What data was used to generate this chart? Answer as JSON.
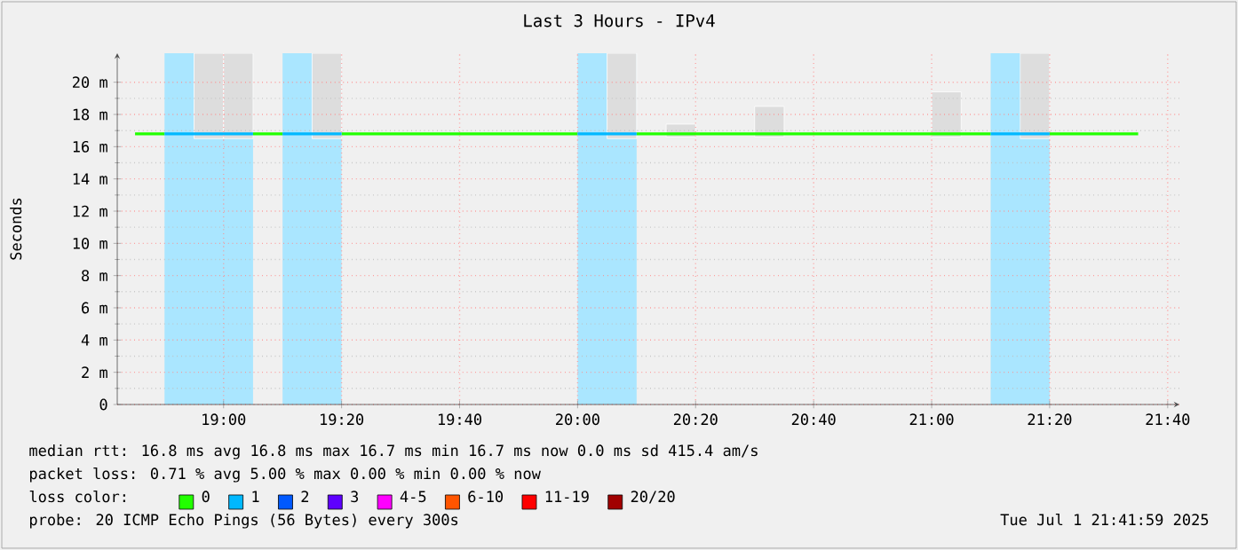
{
  "chart_data": {
    "type": "line",
    "title": "Last 3 Hours - IPv4",
    "ylabel": "Seconds",
    "xlim": [
      18.6997,
      21.6997
    ],
    "xticks": [
      {
        "value": 19,
        "label": "19:00"
      },
      {
        "value": 19.3333,
        "label": "19:20"
      },
      {
        "value": 19.6667,
        "label": "19:40"
      },
      {
        "value": 20,
        "label": "20:00"
      },
      {
        "value": 20.3333,
        "label": "20:20"
      },
      {
        "value": 20.6667,
        "label": "20:40"
      },
      {
        "value": 21,
        "label": "21:00"
      },
      {
        "value": 21.3333,
        "label": "21:20"
      },
      {
        "value": 21.6667,
        "label": "21:40"
      }
    ],
    "ylim": [
      0,
      21.8
    ],
    "yticks": [
      0,
      {
        "value": 2,
        "label": "2 m"
      },
      {
        "value": 4,
        "label": "4 m"
      },
      {
        "value": 6,
        "label": "6 m"
      },
      {
        "value": 8,
        "label": "8 m"
      },
      {
        "value": 10,
        "label": "10 m"
      },
      {
        "value": 12,
        "label": "12 m"
      },
      {
        "value": 14,
        "label": "14 m"
      },
      {
        "value": 16,
        "label": "16 m"
      },
      {
        "value": 18,
        "label": "18 m"
      },
      {
        "value": 20,
        "label": "20 m"
      }
    ],
    "grid": true,
    "legend": "bottom",
    "legend_title": "loss color:",
    "bands": [
      {
        "axis": "x",
        "from": 18.8333,
        "to": 19.0833,
        "color": "#aae6ff"
      },
      {
        "axis": "x",
        "from": 19.1667,
        "to": 19.3333,
        "color": "#aae6ff"
      },
      {
        "axis": "x",
        "from": 20,
        "to": 20.1667,
        "color": "#aae6ff"
      },
      {
        "axis": "x",
        "from": 21.1667,
        "to": 21.3333,
        "color": "#aae6ff"
      }
    ],
    "series": [
      {
        "type": "bar",
        "color": "#dddddd",
        "x": [
          18.9583,
          19.0417,
          19.2917,
          20.125,
          20.2917,
          20.5417,
          21.0417,
          21.2917
        ],
        "base": [
          16.5,
          16.5,
          16.5,
          16.5,
          16.6,
          16.6,
          16.6,
          16.5
        ],
        "values": [
          5.3,
          5.3,
          5.3,
          5.3,
          0.8,
          1.9,
          2.8,
          5.3
        ]
      },
      {
        "name": "0",
        "color": "#22ff00",
        "x": [
          18.75,
          18.8333,
          18.9167,
          19,
          19.0833,
          19.1667,
          19.25,
          19.3333,
          19.4167,
          19.5,
          19.5833,
          19.6667,
          19.75,
          19.8333,
          19.9167,
          20,
          20.0833,
          20.1667,
          20.25,
          20.3333,
          20.4167,
          20.5,
          20.5833,
          20.6667,
          20.75,
          20.8333,
          20.9167,
          21,
          21.0833,
          21.1667,
          21.25,
          21.3333,
          21.4167,
          21.5,
          21.5833
        ],
        "values": [
          16.8,
          16.8,
          null,
          null,
          16.8,
          16.8,
          null,
          16.8,
          16.8,
          16.8,
          16.8,
          16.8,
          16.8,
          16.8,
          16.8,
          16.8,
          null,
          16.8,
          16.8,
          16.8,
          16.8,
          16.8,
          16.8,
          16.8,
          16.8,
          16.8,
          16.8,
          16.8,
          16.8,
          16.8,
          null,
          16.8,
          16.8,
          16.8,
          16.8
        ]
      },
      {
        "name": "1",
        "color": "#00b8ff",
        "x": [
          18.8333,
          18.9167,
          19,
          19.0833,
          19.125,
          19.1667,
          19.25,
          19.3333,
          19.6667,
          20,
          20.0833,
          20.1667,
          20.6667,
          21.1667,
          21.25,
          21.3333
        ],
        "values": [
          16.8,
          16.8,
          16.8,
          16.8,
          null,
          16.8,
          16.8,
          16.8,
          null,
          16.8,
          16.8,
          16.8,
          null,
          16.8,
          16.8,
          16.8
        ]
      },
      {
        "name": "2",
        "color": "#0059ff"
      },
      {
        "name": "3",
        "color": "#5e00ff"
      },
      {
        "name": "4-5",
        "color": "#ff00ff"
      },
      {
        "name": "6-10",
        "color": "#ff5500"
      },
      {
        "name": "11-19",
        "color": "#ff0000"
      },
      {
        "name": "20/20",
        "color": "#a10000"
      }
    ],
    "annotations": [
      "median rtt: 16.8 ms avg 16.8 ms max 16.7 ms min 16.7 ms now 0.0 ms sd 415.4 am/s",
      "packet loss: 0.71 % avg 5.00 % max 0.00 % min 0.00 % now",
      "probe: 20 ICMP Echo Pings (56 Bytes) every 300s",
      "Tue Jul 1 21:41:59 2025"
    ]
  }
}
